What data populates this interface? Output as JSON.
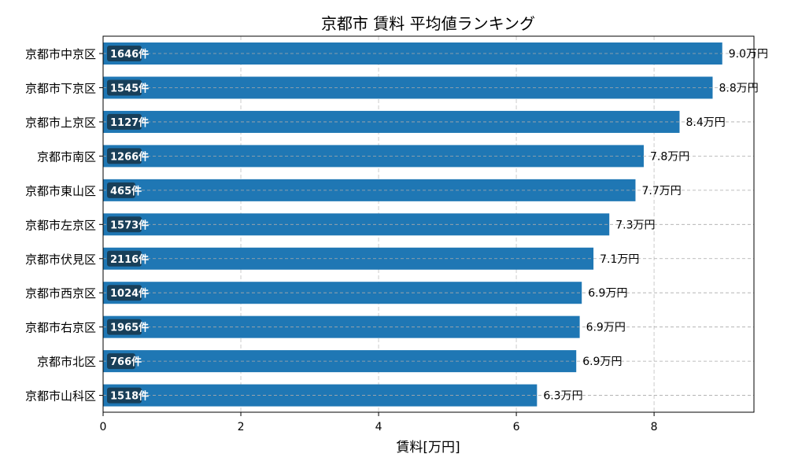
{
  "chart_data": {
    "type": "bar",
    "orientation": "horizontal",
    "title": "京都市 賃料 平均値ランキング",
    "xlabel": "賃料[万円]",
    "ylabel": "",
    "xlim": [
      0,
      9.45
    ],
    "xticks": [
      0,
      2,
      4,
      6,
      8
    ],
    "grid": true,
    "bar_color": "#1f77b4",
    "badge_color": "#17394f",
    "categories": [
      "京都市中京区",
      "京都市下京区",
      "京都市上京区",
      "京都市南区",
      "京都市東山区",
      "京都市左京区",
      "京都市伏見区",
      "京都市西京区",
      "京都市右京区",
      "京都市北区",
      "京都市山科区"
    ],
    "values": [
      8.99,
      8.85,
      8.37,
      7.85,
      7.73,
      7.35,
      7.12,
      6.95,
      6.92,
      6.87,
      6.3
    ],
    "value_labels": [
      "9.0万円",
      "8.8万円",
      "8.4万円",
      "7.8万円",
      "7.7万円",
      "7.3万円",
      "7.1万円",
      "6.9万円",
      "6.9万円",
      "6.9万円",
      "6.3万円"
    ],
    "count_labels": [
      "1646件",
      "1545件",
      "1127件",
      "1266件",
      "465件",
      "1573件",
      "2116件",
      "1024件",
      "1965件",
      "766件",
      "1518件"
    ]
  }
}
